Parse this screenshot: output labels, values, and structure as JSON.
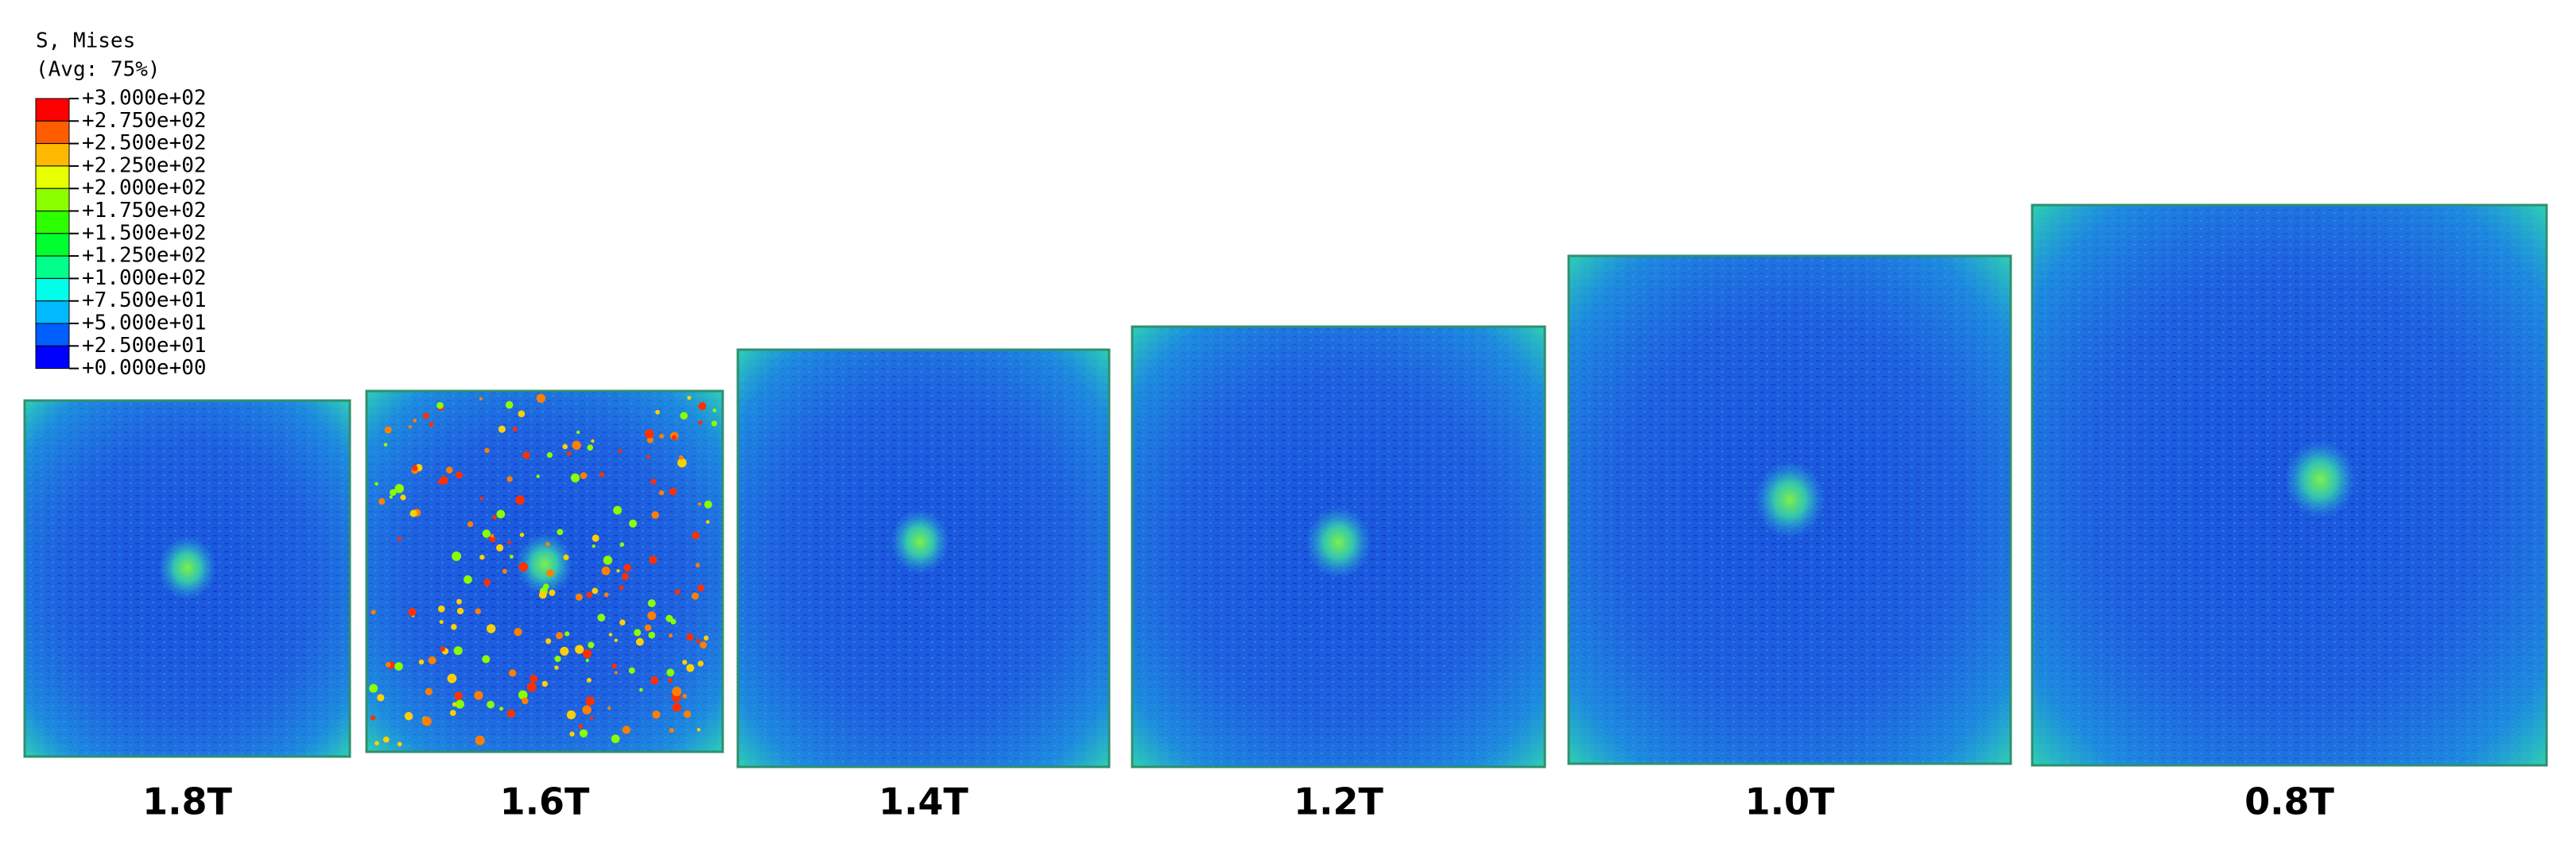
{
  "legend": {
    "title": "S, Mises",
    "subtitle": "(Avg: 75%)",
    "levels": [
      "+3.000e+02",
      "+2.750e+02",
      "+2.500e+02",
      "+2.250e+02",
      "+2.000e+02",
      "+1.750e+02",
      "+1.500e+02",
      "+1.250e+02",
      "+1.000e+02",
      "+7.500e+01",
      "+5.000e+01",
      "+2.500e+01",
      "+0.000e+00"
    ],
    "colors": [
      "#ff0000",
      "#ff5d00",
      "#ffb900",
      "#e8ff00",
      "#8bff00",
      "#2eff00",
      "#00ff2e",
      "#00ff8b",
      "#00ffe8",
      "#00b9ff",
      "#005dff",
      "#0000ff"
    ]
  },
  "panels": [
    {
      "label": "1.8T"
    },
    {
      "label": "1.6T"
    },
    {
      "label": "1.4T"
    },
    {
      "label": "1.2T"
    },
    {
      "label": "1.0T"
    },
    {
      "label": "0.8T"
    }
  ]
}
